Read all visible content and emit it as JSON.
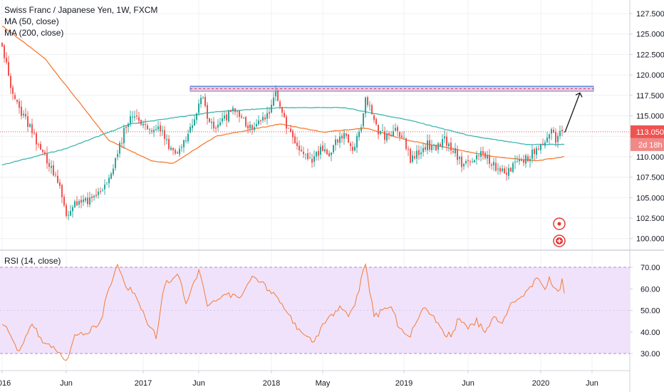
{
  "header": {
    "symbol_title": "Swiss Franc / Japanese Yen, 1W, FXCM",
    "ma50_label": "MA (50, close)",
    "ma200_label": "MA (200, close)",
    "rsi_label": "RSI (14, close)"
  },
  "price_tag": {
    "value": "113.050",
    "countdown": "2d 18h"
  },
  "colors": {
    "candle_up": "#26a69a",
    "candle_down": "#ef5350",
    "ma50": "#f57c33",
    "ma200": "#3fb6b0",
    "rsi_line": "#f57c33",
    "rsi_band": "#f0e2fb",
    "resistance_zone": "#f3c6d6",
    "resistance_line": "#5b8fe8",
    "grid": "#eef0f3"
  },
  "chart_data": [
    {
      "type": "candlestick",
      "title": "Swiss Franc / Japanese Yen, 1W, FXCM",
      "ylim": [
        99.5,
        128.5
      ],
      "yticks": [
        "127.500",
        "125.000",
        "122.500",
        "120.000",
        "117.500",
        "115.000",
        "112.500",
        "110.000",
        "107.500",
        "105.000",
        "102.500",
        "100.000"
      ],
      "x_tick_labels": [
        "2016",
        "Jun",
        "2017",
        "Jun",
        "2018",
        "May",
        "2019",
        "Jun",
        "2020",
        "Jun"
      ],
      "last_price": 113.05,
      "resistance_zone": [
        118.0,
        118.6
      ],
      "projection_arrow": {
        "from": [
          {
            "label": "2020 Mar"
          },
          113.0
        ],
        "to": [
          {
            "label": "2020 Apr"
          },
          117.8
        ]
      },
      "anchors_week_close": [
        [
          0,
          124.0
        ],
        [
          4,
          118.0
        ],
        [
          8,
          116.0
        ],
        [
          13,
          113.5
        ],
        [
          18,
          111.0
        ],
        [
          24,
          108.0
        ],
        [
          27,
          106.5
        ],
        [
          30,
          102.5
        ],
        [
          33,
          104.0
        ],
        [
          38,
          104.5
        ],
        [
          42,
          105.0
        ],
        [
          46,
          106.0
        ],
        [
          50,
          107.0
        ],
        [
          54,
          110.5
        ],
        [
          57,
          113.0
        ],
        [
          60,
          114.5
        ],
        [
          63,
          115.0
        ],
        [
          66,
          114.0
        ],
        [
          70,
          113.5
        ],
        [
          74,
          113.5
        ],
        [
          78,
          111.5
        ],
        [
          82,
          110.0
        ],
        [
          86,
          112.0
        ],
        [
          89,
          114.0
        ],
        [
          92,
          116.5
        ],
        [
          94,
          117.5
        ],
        [
          96,
          115.0
        ],
        [
          100,
          113.5
        ],
        [
          104,
          114.5
        ],
        [
          108,
          116.0
        ],
        [
          112,
          114.5
        ],
        [
          116,
          113.5
        ],
        [
          120,
          114.0
        ],
        [
          124,
          115.0
        ],
        [
          128,
          117.5
        ],
        [
          130,
          116.0
        ],
        [
          133,
          113.5
        ],
        [
          137,
          111.5
        ],
        [
          141,
          110.0
        ],
        [
          145,
          109.5
        ],
        [
          149,
          111.0
        ],
        [
          153,
          110.5
        ],
        [
          157,
          112.0
        ],
        [
          161,
          112.5
        ],
        [
          164,
          111.0
        ],
        [
          168,
          114.0
        ],
        [
          170,
          117.0
        ],
        [
          172,
          116.0
        ],
        [
          175,
          113.5
        ],
        [
          179,
          112.5
        ],
        [
          184,
          113.0
        ],
        [
          188,
          112.0
        ],
        [
          191,
          109.5
        ],
        [
          195,
          110.5
        ],
        [
          199,
          111.5
        ],
        [
          203,
          111.0
        ],
        [
          207,
          112.0
        ],
        [
          211,
          111.0
        ],
        [
          215,
          109.0
        ],
        [
          219,
          109.5
        ],
        [
          223,
          110.5
        ],
        [
          227,
          110.0
        ],
        [
          231,
          108.5
        ],
        [
          235,
          108.0
        ],
        [
          240,
          109.0
        ],
        [
          244,
          109.5
        ],
        [
          248,
          110.5
        ],
        [
          252,
          111.5
        ],
        [
          255,
          112.5
        ],
        [
          257,
          113.0
        ],
        [
          259,
          112.0
        ],
        [
          261,
          113.0
        ],
        [
          263,
          113.05
        ]
      ],
      "series": [
        {
          "name": "MA (50, close)",
          "anchors": [
            [
              0,
              126.0
            ],
            [
              20,
              122.0
            ],
            [
              50,
              112.0
            ],
            [
              70,
              109.5
            ],
            [
              80,
              109.2
            ],
            [
              100,
              112.5
            ],
            [
              130,
              114.0
            ],
            [
              150,
              113.0
            ],
            [
              170,
              113.5
            ],
            [
              190,
              112.0
            ],
            [
              210,
              111.0
            ],
            [
              230,
              110.0
            ],
            [
              250,
              109.5
            ],
            [
              263,
              110.0
            ]
          ]
        },
        {
          "name": "MA (200, close)",
          "anchors": [
            [
              0,
              109.0
            ],
            [
              30,
              111.0
            ],
            [
              60,
              114.0
            ],
            [
              100,
              115.5
            ],
            [
              130,
              116.0
            ],
            [
              160,
              116.0
            ],
            [
              190,
              114.5
            ],
            [
              220,
              112.5
            ],
            [
              245,
              111.5
            ],
            [
              263,
              111.5
            ]
          ]
        }
      ]
    },
    {
      "type": "line",
      "title": "RSI (14, close)",
      "ylim": [
        20,
        75
      ],
      "yticks": [
        "70.00",
        "60.00",
        "50.00",
        "40.00",
        "30.00"
      ],
      "bands": [
        30,
        70
      ],
      "series": [
        {
          "name": "RSI (14, close)",
          "anchors": [
            [
              0,
              45
            ],
            [
              8,
              30
            ],
            [
              14,
              43
            ],
            [
              20,
              35
            ],
            [
              26,
              32
            ],
            [
              30,
              26
            ],
            [
              34,
              38
            ],
            [
              40,
              40
            ],
            [
              46,
              45
            ],
            [
              50,
              60
            ],
            [
              54,
              70
            ],
            [
              56,
              67
            ],
            [
              58,
              62
            ],
            [
              62,
              57
            ],
            [
              68,
              44
            ],
            [
              72,
              38
            ],
            [
              76,
              62
            ],
            [
              80,
              64
            ],
            [
              82,
              67
            ],
            [
              86,
              54
            ],
            [
              92,
              68
            ],
            [
              96,
              53
            ],
            [
              100,
              55
            ],
            [
              106,
              58
            ],
            [
              110,
              55
            ],
            [
              114,
              60
            ],
            [
              118,
              66
            ],
            [
              122,
              63
            ],
            [
              126,
              58
            ],
            [
              130,
              54
            ],
            [
              136,
              45
            ],
            [
              140,
              40
            ],
            [
              146,
              35
            ],
            [
              150,
              43
            ],
            [
              154,
              47
            ],
            [
              158,
              52
            ],
            [
              162,
              47
            ],
            [
              166,
              56
            ],
            [
              170,
              72
            ],
            [
              174,
              47
            ],
            [
              178,
              50
            ],
            [
              182,
              52
            ],
            [
              186,
              41
            ],
            [
              190,
              37
            ],
            [
              194,
              45
            ],
            [
              198,
              52
            ],
            [
              202,
              46
            ],
            [
              206,
              40
            ],
            [
              210,
              38
            ],
            [
              214,
              47
            ],
            [
              218,
              41
            ],
            [
              222,
              45
            ],
            [
              226,
              40
            ],
            [
              230,
              48
            ],
            [
              234,
              44
            ],
            [
              238,
              52
            ],
            [
              242,
              56
            ],
            [
              246,
              59
            ],
            [
              250,
              65
            ],
            [
              252,
              62
            ],
            [
              254,
              60
            ],
            [
              256,
              66
            ],
            [
              258,
              60
            ],
            [
              260,
              58
            ],
            [
              262,
              64
            ],
            [
              263,
              58
            ]
          ]
        }
      ]
    }
  ]
}
